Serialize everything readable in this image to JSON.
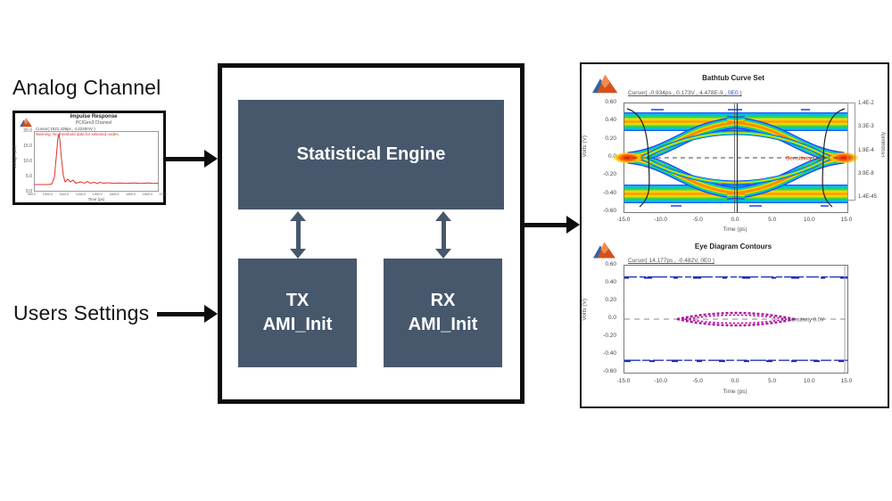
{
  "colors": {
    "block_fill": "#47586c",
    "outline": "#0d0d0d",
    "impulse_line": "#e03127",
    "warning_text": "#e03127",
    "cursor_highlight": "#2244cc",
    "sensitivity_top": "#cc2a00",
    "sensitivity_bottom": "#555555",
    "contour": "#b012a0",
    "rail_blue": "#2336c0"
  },
  "left": {
    "analog_channel_label": "Analog Channel",
    "users_settings_label": "Users Settings",
    "impulse_plot": {
      "title": "Impulse Response",
      "subtitle": "PCIGen3 Channel",
      "cursor_readout": "Cursor( 1521.439ps , 4.2240mV )",
      "warning": "Warning: No threshold data for selected nodes.",
      "ylabel": "Voltage (mV)",
      "xlabel": "Time (ps)",
      "yticks": [
        "20.0",
        "15.0",
        "10.0",
        "5.0",
        "0.0"
      ],
      "xticks": [
        "900.0",
        "1000.0",
        "1100.0",
        "1200.0",
        "1300.0",
        "1400.0",
        "1500.0",
        "1600.0",
        "1700"
      ]
    }
  },
  "engine": {
    "statistical_engine_label": "Statistical Engine",
    "tx_block": {
      "line1": "TX",
      "line2": "AMI_Init"
    },
    "rx_block": {
      "line1": "RX",
      "line2": "AMI_Init"
    }
  },
  "results": {
    "bathtub": {
      "title": "Bathtub Curve Set",
      "cursor_prefix": "Cursor( -0.934ps , 0.173V , 4.478E-9 , ",
      "cursor_highlight": "0E0",
      "cursor_suffix": " )",
      "ylabel": "Volts (V)",
      "xlabel": "Time (ps)",
      "yticks": [
        "0.60",
        "0.40",
        "0.20",
        "0.0",
        "-0.20",
        "-0.40",
        "-0.60"
      ],
      "xticks": [
        "-15.0",
        "-10.0",
        "-5.0",
        "0.0",
        "5.0",
        "10.0",
        "15.0"
      ],
      "annotation": "Sensitivity 0.0V",
      "colorbar": {
        "label": "Probability",
        "ticks": [
          "1.4E-2",
          "3.3E-3",
          "1.9E-4",
          "3.9E-8",
          "1.4E-45"
        ]
      }
    },
    "eye_contours": {
      "title": "Eye Diagram Contours",
      "cursor_readout": "Cursor( 14.177ps , -0.482V, 0E0 )",
      "ylabel": "Volts (V)",
      "xlabel": "Time (ps)",
      "yticks": [
        "0.60",
        "0.40",
        "0.20",
        "0.0",
        "-0.20",
        "-0.40",
        "-0.60"
      ],
      "xticks": [
        "-15.0",
        "-10.0",
        "-5.0",
        "0.0",
        "5.0",
        "10.0",
        "15.0"
      ],
      "annotation": "Sensitivity 0.0V"
    }
  },
  "chart_data": [
    {
      "type": "line",
      "title": "Impulse Response",
      "subtitle": "PCIGen3 Channel",
      "xlabel": "Time (ps)",
      "ylabel": "Voltage (mV)",
      "xlim": [
        850,
        1750
      ],
      "ylim": [
        0,
        22
      ],
      "series": [
        {
          "name": "impulse",
          "x": [
            900,
            1020,
            1050,
            1060,
            1080,
            1120,
            1200,
            1300,
            1400,
            1500,
            1600,
            1700
          ],
          "y": [
            0.1,
            0.5,
            21.0,
            12.0,
            2.0,
            0.8,
            0.4,
            0.6,
            0.3,
            0.4,
            0.3,
            0.3
          ]
        }
      ]
    },
    {
      "type": "heatmap",
      "title": "Bathtub Curve Set",
      "xlabel": "Time (ps)",
      "ylabel": "Volts (V)",
      "xlim": [
        -15.5,
        15.5
      ],
      "ylim": [
        -0.65,
        0.65
      ],
      "colorbar_label": "Probability",
      "colorbar_ticks": [
        "1.4E-2",
        "3.3E-3",
        "1.9E-4",
        "3.9E-8",
        "1.4E-45"
      ],
      "features": {
        "rail_levels_v": [
          0.43,
          -0.43
        ],
        "rail_thickness_v": 0.21,
        "eye_corner_x_ps": [
          -13,
          13
        ],
        "crossing_hotspots": [
          {
            "x": -15,
            "v": 0
          },
          {
            "x": 15,
            "v": 0
          }
        ],
        "bathtub_curves_x_ps": [
          -12.6,
          12.6
        ],
        "cursor_line_x_ps": 0.0,
        "sensitivity_line_v": 0.0
      }
    },
    {
      "type": "line",
      "title": "Eye Diagram Contours",
      "xlabel": "Time (ps)",
      "ylabel": "Volts (V)",
      "xlim": [
        -15.5,
        15.5
      ],
      "ylim": [
        -0.65,
        0.65
      ],
      "features": {
        "upper_rail_v": 0.51,
        "lower_rail_v": -0.5,
        "contour_x_extent_ps": [
          -8.2,
          8.2
        ],
        "contour_v_extent": [
          -0.08,
          0.08
        ],
        "sensitivity_line_v": 0.0,
        "cursor_line_x_ps": 14.2
      }
    }
  ]
}
